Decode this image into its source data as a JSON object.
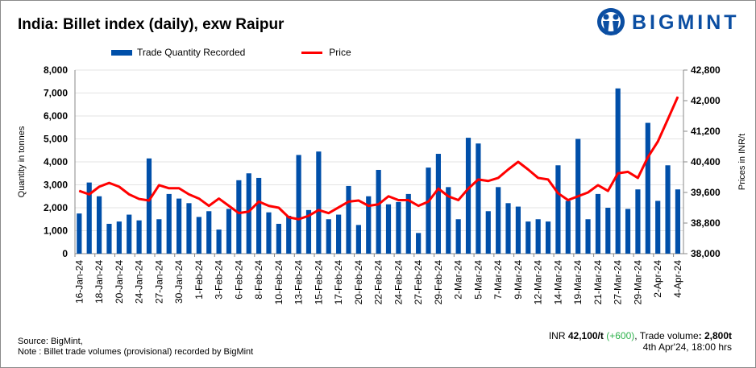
{
  "title": "India: Billet index (daily), exw Raipur",
  "logo": {
    "text": "BIGMINT",
    "color": "#0b4ea2"
  },
  "chart_data": {
    "type": "bar",
    "title": "India: Billet index (daily), exw Raipur",
    "categories": [
      "16-Jan-24",
      "",
      "18-Jan-24",
      "",
      "20-Jan-24",
      "",
      "24-Jan-24",
      "",
      "27-Jan-24",
      "",
      "30-Jan-24",
      "",
      "1-Feb-24",
      "",
      "3-Feb-24",
      "",
      "6-Feb-24",
      "",
      "8-Feb-24",
      "",
      "10-Feb-24",
      "",
      "13-Feb-24",
      "",
      "15-Feb-24",
      "",
      "17-Feb-24",
      "",
      "20-Feb-24",
      "",
      "22-Feb-24",
      "",
      "24-Feb-24",
      "",
      "27-Feb-24",
      "",
      "29-Feb-24",
      "",
      "2-Mar-24",
      "",
      "5-Mar-24",
      "",
      "7-Mar-24",
      "",
      "9-Mar-24",
      "",
      "12-Mar-24",
      "",
      "14-Mar-24",
      "",
      "19-Mar-24",
      "",
      "21-Mar-24",
      "",
      "27-Mar-24",
      "",
      "29-Mar-24",
      "",
      "2-Apr-24",
      "",
      "4-Apr-24"
    ],
    "series": [
      {
        "name": "Trade Quantity Recorded",
        "type": "bar",
        "axis": "left",
        "color": "#004fa9",
        "values": [
          1750,
          3100,
          2500,
          1300,
          1400,
          1700,
          1450,
          4150,
          1500,
          2600,
          2400,
          2200,
          1600,
          1850,
          1050,
          1950,
          3200,
          3500,
          3300,
          1800,
          1300,
          1650,
          4300,
          1900,
          4450,
          1500,
          1700,
          2950,
          1250,
          2500,
          3650,
          2150,
          2250,
          2600,
          900,
          3750,
          4350,
          2900,
          1500,
          5050,
          4800,
          1850,
          2900,
          2200,
          2050,
          1400,
          1500,
          1400,
          3850,
          2300,
          5000,
          1500,
          2600,
          2000,
          7200,
          1950,
          2800,
          5700,
          2300,
          3850,
          2800
        ]
      },
      {
        "name": "Price",
        "type": "line",
        "axis": "right",
        "color": "#ff0000",
        "values": [
          39640,
          39550,
          39750,
          39850,
          39750,
          39550,
          39430,
          39390,
          39790,
          39710,
          39710,
          39550,
          39440,
          39250,
          39440,
          39250,
          39060,
          39100,
          39360,
          39250,
          39200,
          38950,
          38900,
          38990,
          39140,
          39060,
          39210,
          39360,
          39390,
          39250,
          39290,
          39500,
          39400,
          39400,
          39250,
          39360,
          39700,
          39500,
          39400,
          39700,
          39940,
          39900,
          39980,
          40200,
          40400,
          40200,
          39980,
          39940,
          39580,
          39400,
          39500,
          39600,
          39790,
          39640,
          40100,
          40140,
          39980,
          40520,
          40930,
          41510,
          42100
        ]
      }
    ],
    "ylabel": "Quantity in tonnes",
    "y2label": "Prices in INR/t",
    "ylim": [
      0,
      8000
    ],
    "y2lim": [
      38000,
      42800
    ],
    "yticks": [
      "0",
      "1,000",
      "2,000",
      "3,000",
      "4,000",
      "5,000",
      "6,000",
      "7,000",
      "8,000"
    ],
    "y2ticks": [
      "38,000",
      "38,800",
      "39,600",
      "40,400",
      "41,200",
      "42,000",
      "42,800"
    ],
    "grid": true,
    "legend": "top"
  },
  "footer": {
    "source": "Source: BigMint,",
    "note": "Note : Billet trade volumes (provisional) recorded by BigMint",
    "summary_prefix": "INR ",
    "price": "42,100/t",
    "change": "(+600)",
    "volume_label": ", Trade volume",
    "volume": ": 2,800t",
    "timestamp": "4th Apr'24, 18:00 hrs"
  }
}
